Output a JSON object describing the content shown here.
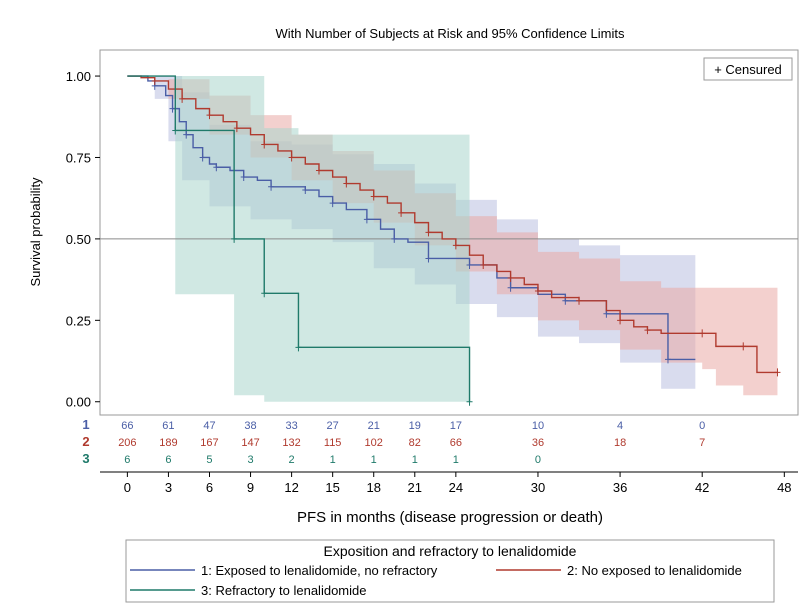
{
  "chart_data": {
    "type": "line",
    "title": "With Number of Subjects at Risk and 95% Confidence Limits",
    "xlabel": "PFS in months (disease progression or death)",
    "ylabel": "Survival probability",
    "xlim": [
      -2,
      49
    ],
    "ylim": [
      -0.01,
      1.08
    ],
    "x_ticks": [
      0,
      3,
      6,
      9,
      12,
      15,
      18,
      21,
      24,
      30,
      36,
      42,
      48
    ],
    "x_tick_labels": [
      "0",
      "3",
      "6",
      "9",
      "12",
      "15",
      "18",
      "21",
      "24",
      "30",
      "36",
      "42",
      "48"
    ],
    "y_ticks": [
      0,
      0.25,
      0.5,
      0.75,
      1.0
    ],
    "y_tick_labels": [
      "0.00",
      "0.25",
      "0.50",
      "0.75",
      "1.00"
    ],
    "reference_line_y": 0.5,
    "inset_legend": "+ Censured",
    "colors": {
      "s1": "#4a5ea6",
      "s2": "#b03a2e",
      "s3": "#1f7a6a",
      "ci1": "#b9c0e0",
      "ci2": "#e9a9a5",
      "ci3": "#a9d6cc"
    },
    "series": [
      {
        "name": "1: Exposed to lenalidomide, no refractory",
        "color_key": "s1",
        "ci_key": "ci1",
        "steps": [
          [
            0,
            1.0
          ],
          [
            1.5,
            0.985
          ],
          [
            2,
            0.97
          ],
          [
            2.8,
            0.94
          ],
          [
            3.3,
            0.9
          ],
          [
            3.8,
            0.86
          ],
          [
            4.3,
            0.82
          ],
          [
            4.8,
            0.78
          ],
          [
            5.5,
            0.75
          ],
          [
            6,
            0.73
          ],
          [
            6.5,
            0.72
          ],
          [
            7.5,
            0.71
          ],
          [
            8.5,
            0.69
          ],
          [
            9.5,
            0.68
          ],
          [
            10.5,
            0.66
          ],
          [
            12,
            0.66
          ],
          [
            13,
            0.65
          ],
          [
            14,
            0.63
          ],
          [
            15,
            0.61
          ],
          [
            16,
            0.59
          ],
          [
            17.5,
            0.56
          ],
          [
            18.5,
            0.53
          ],
          [
            19.5,
            0.5
          ],
          [
            20.5,
            0.49
          ],
          [
            22,
            0.44
          ],
          [
            24,
            0.44
          ],
          [
            25,
            0.42
          ],
          [
            27,
            0.38
          ],
          [
            28,
            0.35
          ],
          [
            30,
            0.33
          ],
          [
            32,
            0.31
          ],
          [
            34,
            0.31
          ],
          [
            35,
            0.27
          ],
          [
            39,
            0.27
          ],
          [
            39.5,
            0.13
          ],
          [
            41.5,
            0.13
          ]
        ],
        "ci_upper": [
          [
            0,
            1.0
          ],
          [
            3,
            1.0
          ],
          [
            4,
            0.95
          ],
          [
            6,
            0.85
          ],
          [
            9,
            0.8
          ],
          [
            12,
            0.79
          ],
          [
            15,
            0.76
          ],
          [
            18,
            0.73
          ],
          [
            21,
            0.67
          ],
          [
            24,
            0.62
          ],
          [
            27,
            0.56
          ],
          [
            30,
            0.5
          ],
          [
            33,
            0.48
          ],
          [
            36,
            0.45
          ],
          [
            39,
            0.45
          ],
          [
            41.5,
            0.4
          ]
        ],
        "ci_lower": [
          [
            0,
            1.0
          ],
          [
            2,
            0.93
          ],
          [
            3,
            0.8
          ],
          [
            4,
            0.68
          ],
          [
            6,
            0.6
          ],
          [
            9,
            0.56
          ],
          [
            12,
            0.53
          ],
          [
            15,
            0.49
          ],
          [
            18,
            0.41
          ],
          [
            21,
            0.36
          ],
          [
            24,
            0.3
          ],
          [
            27,
            0.26
          ],
          [
            30,
            0.2
          ],
          [
            33,
            0.18
          ],
          [
            36,
            0.12
          ],
          [
            39,
            0.04
          ],
          [
            41.5,
            0.0
          ]
        ],
        "at_risk": [
          "66",
          "61",
          "47",
          "38",
          "33",
          "27",
          "21",
          "19",
          "17",
          "10",
          "4",
          "0"
        ],
        "at_risk_x": [
          0,
          3,
          6,
          9,
          12,
          15,
          18,
          21,
          24,
          30,
          36,
          42
        ]
      },
      {
        "name": "2: No exposed to lenalidomide",
        "color_key": "s2",
        "ci_key": "ci2",
        "steps": [
          [
            0,
            1.0
          ],
          [
            1,
            0.995
          ],
          [
            2,
            0.985
          ],
          [
            3,
            0.96
          ],
          [
            4,
            0.93
          ],
          [
            5,
            0.9
          ],
          [
            6,
            0.88
          ],
          [
            7,
            0.86
          ],
          [
            8,
            0.84
          ],
          [
            9,
            0.82
          ],
          [
            10,
            0.79
          ],
          [
            11,
            0.77
          ],
          [
            12,
            0.75
          ],
          [
            13,
            0.73
          ],
          [
            14,
            0.71
          ],
          [
            15,
            0.69
          ],
          [
            16,
            0.67
          ],
          [
            17,
            0.65
          ],
          [
            18,
            0.63
          ],
          [
            19,
            0.61
          ],
          [
            20,
            0.58
          ],
          [
            21,
            0.55
          ],
          [
            22,
            0.52
          ],
          [
            23,
            0.5
          ],
          [
            24,
            0.48
          ],
          [
            25,
            0.45
          ],
          [
            26,
            0.42
          ],
          [
            27,
            0.4
          ],
          [
            28,
            0.38
          ],
          [
            29,
            0.36
          ],
          [
            30,
            0.34
          ],
          [
            31,
            0.32
          ],
          [
            33,
            0.31
          ],
          [
            35,
            0.28
          ],
          [
            36,
            0.25
          ],
          [
            37,
            0.23
          ],
          [
            38,
            0.22
          ],
          [
            39,
            0.21
          ],
          [
            42,
            0.21
          ],
          [
            43,
            0.17
          ],
          [
            45,
            0.17
          ],
          [
            46,
            0.09
          ],
          [
            47.5,
            0.09
          ]
        ],
        "ci_upper": [
          [
            0,
            1.0
          ],
          [
            3,
            0.99
          ],
          [
            6,
            0.94
          ],
          [
            9,
            0.88
          ],
          [
            12,
            0.82
          ],
          [
            15,
            0.77
          ],
          [
            18,
            0.71
          ],
          [
            21,
            0.64
          ],
          [
            24,
            0.57
          ],
          [
            27,
            0.52
          ],
          [
            30,
            0.46
          ],
          [
            33,
            0.44
          ],
          [
            36,
            0.37
          ],
          [
            39,
            0.35
          ],
          [
            42,
            0.35
          ],
          [
            45,
            0.35
          ],
          [
            47.5,
            0.35
          ]
        ],
        "ci_lower": [
          [
            0,
            1.0
          ],
          [
            3,
            0.93
          ],
          [
            6,
            0.82
          ],
          [
            9,
            0.75
          ],
          [
            12,
            0.68
          ],
          [
            15,
            0.61
          ],
          [
            18,
            0.55
          ],
          [
            21,
            0.48
          ],
          [
            24,
            0.4
          ],
          [
            27,
            0.33
          ],
          [
            30,
            0.25
          ],
          [
            33,
            0.22
          ],
          [
            36,
            0.16
          ],
          [
            39,
            0.12
          ],
          [
            42,
            0.1
          ],
          [
            43,
            0.05
          ],
          [
            45,
            0.02
          ],
          [
            47.5,
            0.02
          ]
        ],
        "at_risk": [
          "206",
          "189",
          "167",
          "147",
          "132",
          "115",
          "102",
          "82",
          "66",
          "36",
          "18",
          "7"
        ],
        "at_risk_x": [
          0,
          3,
          6,
          9,
          12,
          15,
          18,
          21,
          24,
          30,
          36,
          42
        ]
      },
      {
        "name": "3: Refractory to lenalidomide",
        "color_key": "s3",
        "ci_key": "ci3",
        "steps": [
          [
            0,
            1.0
          ],
          [
            3.5,
            1.0
          ],
          [
            3.5,
            0.833
          ],
          [
            7.8,
            0.833
          ],
          [
            7.8,
            0.5
          ],
          [
            10,
            0.5
          ],
          [
            10,
            0.333
          ],
          [
            12.5,
            0.333
          ],
          [
            12.5,
            0.167
          ],
          [
            25,
            0.167
          ],
          [
            25,
            0.0
          ]
        ],
        "ci_upper": [
          [
            0,
            1.0
          ],
          [
            3.5,
            1.0
          ],
          [
            7.8,
            1.0
          ],
          [
            10,
            0.84
          ],
          [
            12.5,
            0.82
          ],
          [
            25,
            0.66
          ]
        ],
        "ci_lower": [
          [
            0,
            1.0
          ],
          [
            3.5,
            0.33
          ],
          [
            7.8,
            0.02
          ],
          [
            10,
            0.0
          ],
          [
            25,
            0.0
          ]
        ],
        "at_risk": [
          "6",
          "6",
          "5",
          "3",
          "2",
          "1",
          "1",
          "1",
          "1",
          "0"
        ],
        "at_risk_x": [
          0,
          3,
          6,
          9,
          12,
          15,
          18,
          21,
          24,
          30
        ]
      }
    ],
    "risk_row_labels": [
      "1",
      "2",
      "3"
    ],
    "legend_title": "Exposition and refractory to lenalidomide"
  }
}
